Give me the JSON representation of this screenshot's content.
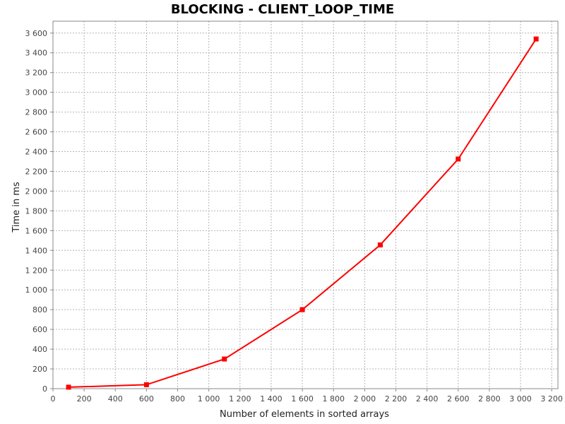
{
  "chart_data": {
    "type": "line",
    "title": "BLOCKING - CLIENT_LOOP_TIME",
    "xlabel": "Number of elements in sorted arrays",
    "ylabel": "Time in ms",
    "xlim": [
      0,
      3240
    ],
    "ylim": [
      0,
      3720
    ],
    "x_ticks": [
      0,
      200,
      400,
      600,
      800,
      1000,
      1200,
      1400,
      1600,
      1800,
      2000,
      2200,
      2400,
      2600,
      2800,
      3000,
      3200
    ],
    "x_tick_labels": [
      "0",
      "200",
      "400",
      "600",
      "800",
      "1 000",
      "1 200",
      "1 400",
      "1 600",
      "1 800",
      "2 000",
      "2 200",
      "2 400",
      "2 600",
      "2 800",
      "3 000",
      "3 200"
    ],
    "y_ticks": [
      0,
      200,
      400,
      600,
      800,
      1000,
      1200,
      1400,
      1600,
      1800,
      2000,
      2200,
      2400,
      2600,
      2800,
      3000,
      3200,
      3400,
      3600
    ],
    "y_tick_labels": [
      "0",
      "200",
      "400",
      "600",
      "800",
      "1 000",
      "1 200",
      "1 400",
      "1 600",
      "1 800",
      "2 000",
      "2 200",
      "2 400",
      "2 600",
      "2 800",
      "3 000",
      "3 200",
      "3 400",
      "3 600"
    ],
    "grid": true,
    "series": [
      {
        "color": "#ff0000",
        "marker": "square",
        "x": [
          100,
          600,
          1100,
          1600,
          2100,
          2600,
          3100
        ],
        "y": [
          15,
          40,
          300,
          800,
          1455,
          2325,
          3540
        ]
      }
    ]
  },
  "colors": {
    "plot_border": "#888888",
    "grid": "#b4b4b4",
    "series_line": "#ff0000"
  }
}
